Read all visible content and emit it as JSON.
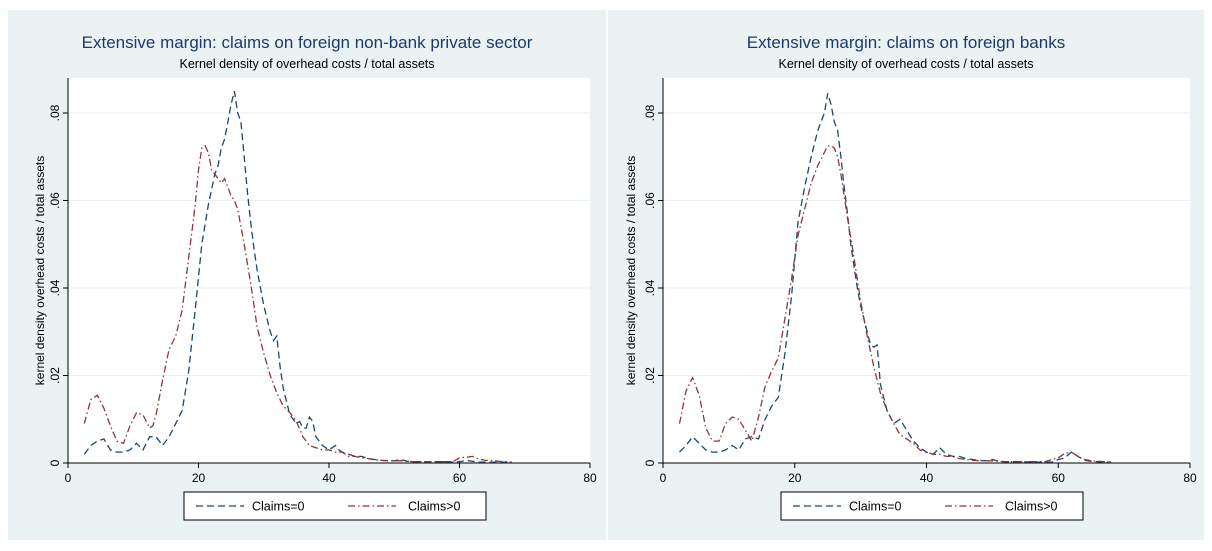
{
  "chart_data": [
    {
      "type": "line",
      "title": "Extensive margin: claims on foreign non-bank private sector",
      "subtitle": "Kernel density of overhead costs / total assets",
      "ylabel": "kernel density overhead costs / total assets",
      "xlim": [
        0,
        80
      ],
      "ylim": [
        0,
        0.088
      ],
      "xticks": [
        0,
        20,
        40,
        60,
        80
      ],
      "xtick_labels": [
        "0",
        "20",
        "40",
        "60",
        "80"
      ],
      "yticks": [
        0,
        0.02,
        0.04,
        0.06,
        0.08
      ],
      "ytick_labels": [
        "0",
        ".02",
        ".04",
        ".06",
        ".08"
      ],
      "grid": true,
      "legend_position": "bottom",
      "series": [
        {
          "name": "Claims=0",
          "color": "#1a476f",
          "dash": "dash",
          "x": [
            2.5,
            3.5,
            4.5,
            5.5,
            6.5,
            7.5,
            8.5,
            9.5,
            10.5,
            11.5,
            12.5,
            13.5,
            14.5,
            15.5,
            16.5,
            17.5,
            18.5,
            19.5,
            20.5,
            21.5,
            22.5,
            23,
            23.5,
            24,
            24.5,
            25,
            25.5,
            26,
            26.5,
            27,
            27.5,
            28,
            28.5,
            29,
            29.5,
            30,
            30.5,
            31,
            31.5,
            32,
            32.5,
            33,
            33.5,
            34,
            35,
            35.5,
            36,
            36.5,
            37,
            37.5,
            38,
            39,
            40,
            41,
            41.5,
            42,
            43,
            44,
            45,
            46,
            47,
            48,
            49,
            50,
            51,
            52,
            53,
            54,
            55,
            56,
            57,
            58,
            59,
            60,
            61,
            62,
            63,
            64,
            65,
            66,
            67,
            68
          ],
          "y": [
            0.002,
            0.004,
            0.005,
            0.0055,
            0.003,
            0.0025,
            0.0025,
            0.003,
            0.0045,
            0.003,
            0.006,
            0.006,
            0.004,
            0.006,
            0.009,
            0.012,
            0.021,
            0.035,
            0.05,
            0.059,
            0.066,
            0.068,
            0.072,
            0.074,
            0.078,
            0.082,
            0.085,
            0.08,
            0.078,
            0.07,
            0.062,
            0.055,
            0.049,
            0.044,
            0.04,
            0.036,
            0.033,
            0.03,
            0.028,
            0.029,
            0.022,
            0.017,
            0.014,
            0.011,
            0.009,
            0.0095,
            0.008,
            0.008,
            0.0105,
            0.0095,
            0.006,
            0.004,
            0.003,
            0.004,
            0.003,
            0.0025,
            0.002,
            0.0015,
            0.0015,
            0.001,
            0.0008,
            0.0006,
            0.0005,
            0.0005,
            0.0008,
            0.0004,
            0.0003,
            0.0003,
            0.0002,
            0.0003,
            0.0003,
            0.0003,
            0.0002,
            0.0003,
            0.0006,
            0.0004,
            0.0002,
            0.0002,
            0.0002,
            0.0002,
            0.0002,
            0.0002
          ]
        },
        {
          "name": "Claims>0",
          "color": "#90353b",
          "dash": "dashdot",
          "x": [
            2.5,
            3.5,
            4.5,
            5.5,
            6.5,
            7.5,
            8.5,
            9.5,
            10.5,
            11.5,
            12.5,
            13,
            13.5,
            14.5,
            15.5,
            16.5,
            17.5,
            18.5,
            19.5,
            20,
            20.5,
            21,
            21.5,
            22,
            22.5,
            23,
            23.5,
            24,
            24.5,
            25,
            25.5,
            26,
            27,
            28,
            29,
            30,
            31,
            32,
            33,
            34,
            35,
            36,
            37,
            38,
            39,
            40,
            41,
            42,
            43,
            44,
            45,
            46,
            47,
            48,
            49,
            50,
            51,
            52,
            53,
            54,
            55,
            56,
            57,
            58,
            59,
            60,
            61,
            62,
            63,
            64,
            65,
            66,
            67,
            68
          ],
          "y": [
            0.009,
            0.0145,
            0.0155,
            0.0125,
            0.0085,
            0.005,
            0.0045,
            0.0085,
            0.0115,
            0.011,
            0.008,
            0.0085,
            0.011,
            0.019,
            0.026,
            0.029,
            0.035,
            0.047,
            0.059,
            0.067,
            0.072,
            0.0725,
            0.071,
            0.067,
            0.066,
            0.065,
            0.064,
            0.065,
            0.063,
            0.061,
            0.06,
            0.058,
            0.05,
            0.041,
            0.031,
            0.025,
            0.02,
            0.016,
            0.013,
            0.0115,
            0.0095,
            0.006,
            0.004,
            0.0035,
            0.003,
            0.003,
            0.0025,
            0.0025,
            0.0015,
            0.0015,
            0.0012,
            0.001,
            0.0007,
            0.0006,
            0.0005,
            0.0005,
            0.0005,
            0.0004,
            0.0003,
            0.0003,
            0.0003,
            0.0003,
            0.0003,
            0.0003,
            0.0003,
            0.0012,
            0.0013,
            0.0015,
            0.0009,
            0.0006,
            0.0006,
            0.0004,
            0.0003,
            0.0002
          ]
        }
      ]
    },
    {
      "type": "line",
      "title": "Extensive margin: claims on foreign banks",
      "subtitle": "Kernel density of overhead costs / total assets",
      "ylabel": "kernel density overhead costs / total assets",
      "xlim": [
        0,
        80
      ],
      "ylim": [
        0,
        0.088
      ],
      "xticks": [
        0,
        20,
        40,
        60,
        80
      ],
      "xtick_labels": [
        "0",
        "20",
        "40",
        "60",
        "80"
      ],
      "yticks": [
        0,
        0.02,
        0.04,
        0.06,
        0.08
      ],
      "ytick_labels": [
        "0",
        ".02",
        ".04",
        ".06",
        ".08"
      ],
      "grid": true,
      "legend_position": "bottom",
      "series": [
        {
          "name": "Claims=0",
          "color": "#1a476f",
          "dash": "dash",
          "x": [
            2.5,
            3.5,
            4.5,
            5.5,
            6.5,
            7.5,
            8.5,
            9.5,
            10.5,
            11.5,
            12.5,
            13.5,
            14.5,
            15.5,
            16.5,
            17.5,
            18.5,
            19.5,
            20.5,
            21.5,
            22.5,
            23.5,
            24,
            24.5,
            25,
            25.5,
            26,
            26.5,
            27,
            27.5,
            28,
            28.5,
            29,
            29.5,
            30,
            30.5,
            31,
            31.5,
            32,
            32.5,
            33,
            34,
            35,
            36,
            37,
            38,
            39,
            40,
            41,
            42,
            43,
            44,
            45,
            46,
            47,
            48,
            49,
            50,
            51,
            52,
            53,
            54,
            55,
            56,
            57,
            58,
            59,
            60,
            61,
            62,
            63,
            64,
            65,
            66,
            67,
            68
          ],
          "y": [
            0.0025,
            0.004,
            0.006,
            0.0045,
            0.003,
            0.0025,
            0.0025,
            0.003,
            0.004,
            0.003,
            0.0055,
            0.006,
            0.0055,
            0.01,
            0.013,
            0.015,
            0.025,
            0.038,
            0.055,
            0.063,
            0.07,
            0.076,
            0.078,
            0.08,
            0.0845,
            0.082,
            0.078,
            0.076,
            0.07,
            0.063,
            0.057,
            0.05,
            0.045,
            0.04,
            0.036,
            0.033,
            0.03,
            0.027,
            0.0265,
            0.027,
            0.018,
            0.012,
            0.009,
            0.01,
            0.0075,
            0.005,
            0.0035,
            0.0025,
            0.002,
            0.0035,
            0.002,
            0.0015,
            0.0015,
            0.001,
            0.0008,
            0.0006,
            0.0005,
            0.0008,
            0.0004,
            0.0003,
            0.0003,
            0.0003,
            0.0002,
            0.0003,
            0.0002,
            0.0002,
            0.0002,
            0.0008,
            0.0012,
            0.0025,
            0.0015,
            0.0006,
            0.0004,
            0.0003,
            0.0002,
            0.0002
          ]
        },
        {
          "name": "Claims>0",
          "color": "#90353b",
          "dash": "dashdot",
          "x": [
            2.5,
            3.5,
            4.5,
            5.5,
            6.5,
            7.5,
            8.5,
            9.5,
            10.5,
            11.5,
            12.5,
            13.5,
            14.5,
            15.5,
            16.5,
            17.5,
            18.5,
            19.5,
            20.5,
            21.5,
            22.5,
            23.5,
            24.5,
            25,
            25.5,
            26,
            26.5,
            27,
            28,
            29,
            30,
            31,
            32,
            33,
            34,
            35,
            36,
            37,
            38,
            39,
            40,
            41,
            42,
            43,
            44,
            45,
            46,
            47,
            48,
            49,
            50,
            51,
            52,
            53,
            54,
            55,
            56,
            57,
            58,
            59,
            60,
            61,
            62,
            63,
            64,
            65,
            66,
            67,
            68
          ],
          "y": [
            0.009,
            0.0165,
            0.0195,
            0.0155,
            0.008,
            0.005,
            0.005,
            0.009,
            0.0105,
            0.01,
            0.0075,
            0.005,
            0.0105,
            0.0175,
            0.021,
            0.024,
            0.033,
            0.042,
            0.052,
            0.058,
            0.064,
            0.068,
            0.071,
            0.0725,
            0.0725,
            0.072,
            0.07,
            0.066,
            0.056,
            0.047,
            0.037,
            0.029,
            0.022,
            0.016,
            0.012,
            0.009,
            0.0065,
            0.0055,
            0.0045,
            0.003,
            0.0025,
            0.002,
            0.002,
            0.0015,
            0.0015,
            0.001,
            0.0008,
            0.0006,
            0.0005,
            0.0005,
            0.0005,
            0.0004,
            0.0003,
            0.0003,
            0.0003,
            0.0003,
            0.0003,
            0.0003,
            0.0003,
            0.0008,
            0.0012,
            0.0022,
            0.0025,
            0.0015,
            0.0008,
            0.0005,
            0.0004,
            0.0003,
            0.0002
          ]
        }
      ]
    }
  ]
}
